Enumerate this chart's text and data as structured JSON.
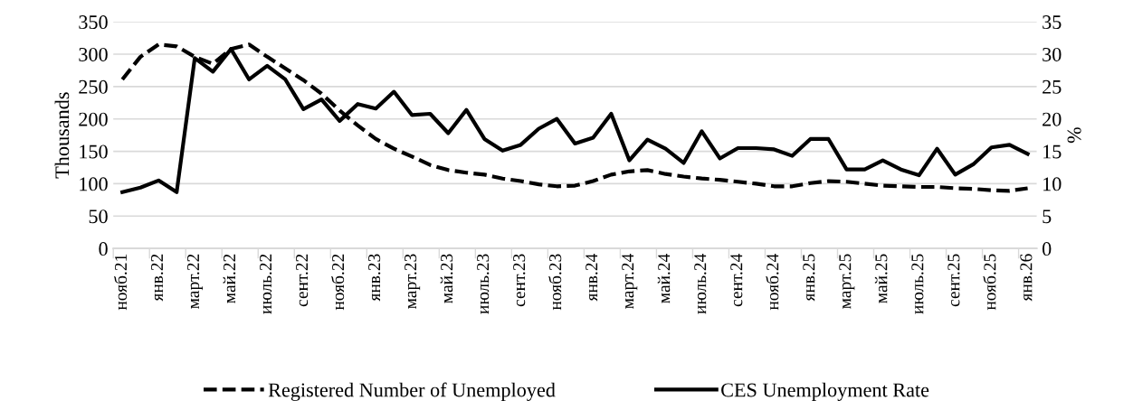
{
  "chart_data": {
    "type": "line",
    "categories": [
      "нояб.21",
      null,
      "янв.22",
      null,
      "март.22",
      null,
      "май.22",
      null,
      "июль.22",
      null,
      "сент.22",
      null,
      "нояб.22",
      null,
      "янв.23",
      null,
      "март.23",
      null,
      "май.23",
      null,
      "июль.23",
      null,
      "сент.23",
      null,
      "нояб.23",
      null,
      "янв.24",
      null,
      "март.24",
      null,
      "май.24",
      null,
      "июль.24",
      null,
      "сент.24",
      null,
      "нояб.24",
      null,
      "янв.25",
      null,
      "март.25",
      null,
      "май.25",
      null,
      "июль.25",
      null,
      "сент.25",
      null,
      "нояб.25",
      null,
      "янв.26"
    ],
    "series": [
      {
        "name": "Registered Number of Unemployed",
        "color": "#000000",
        "line_style": "dashed",
        "axis": "y",
        "values": [
          261,
          296,
          315,
          312,
          296,
          285,
          308,
          315,
          296,
          278,
          260,
          239,
          213,
          190,
          169,
          154,
          142,
          129,
          121,
          117,
          114,
          108,
          104,
          99,
          96,
          97,
          104,
          114,
          119,
          121,
          115,
          111,
          108,
          106,
          103,
          100,
          96,
          96,
          101,
          104,
          103,
          100,
          97,
          96,
          95,
          95,
          93,
          92,
          90,
          89,
          93
        ]
      },
      {
        "name": "CES Unemployment Rate",
        "color": "#000000",
        "line_style": "solid",
        "axis": "y2",
        "values": [
          8.7,
          9.4,
          10.5,
          8.7,
          29.4,
          27.3,
          30.8,
          26.1,
          28.2,
          26.1,
          21.5,
          23.0,
          19.7,
          22.3,
          21.6,
          24.2,
          20.6,
          20.8,
          17.8,
          21.4,
          16.9,
          15.1,
          16.0,
          18.5,
          20.0,
          16.2,
          17.1,
          20.8,
          13.6,
          16.8,
          15.4,
          13.2,
          18.1,
          13.9,
          15.5,
          15.5,
          15.3,
          14.3,
          16.9,
          16.9,
          12.2,
          12.2,
          13.6,
          12.2,
          11.3,
          15.4,
          11.4,
          13.0,
          15.6,
          16.0,
          14.6
        ]
      }
    ],
    "ylabel": "Thousands",
    "y2label": "%",
    "ylim": [
      0,
      350
    ],
    "yticks": [
      0,
      50,
      100,
      150,
      200,
      250,
      300,
      350
    ],
    "y2lim": [
      0,
      35
    ],
    "y2ticks": [
      0,
      5,
      10,
      15,
      20,
      25,
      30,
      35
    ],
    "grid": "y",
    "legend": "bottom",
    "marker": "none"
  }
}
